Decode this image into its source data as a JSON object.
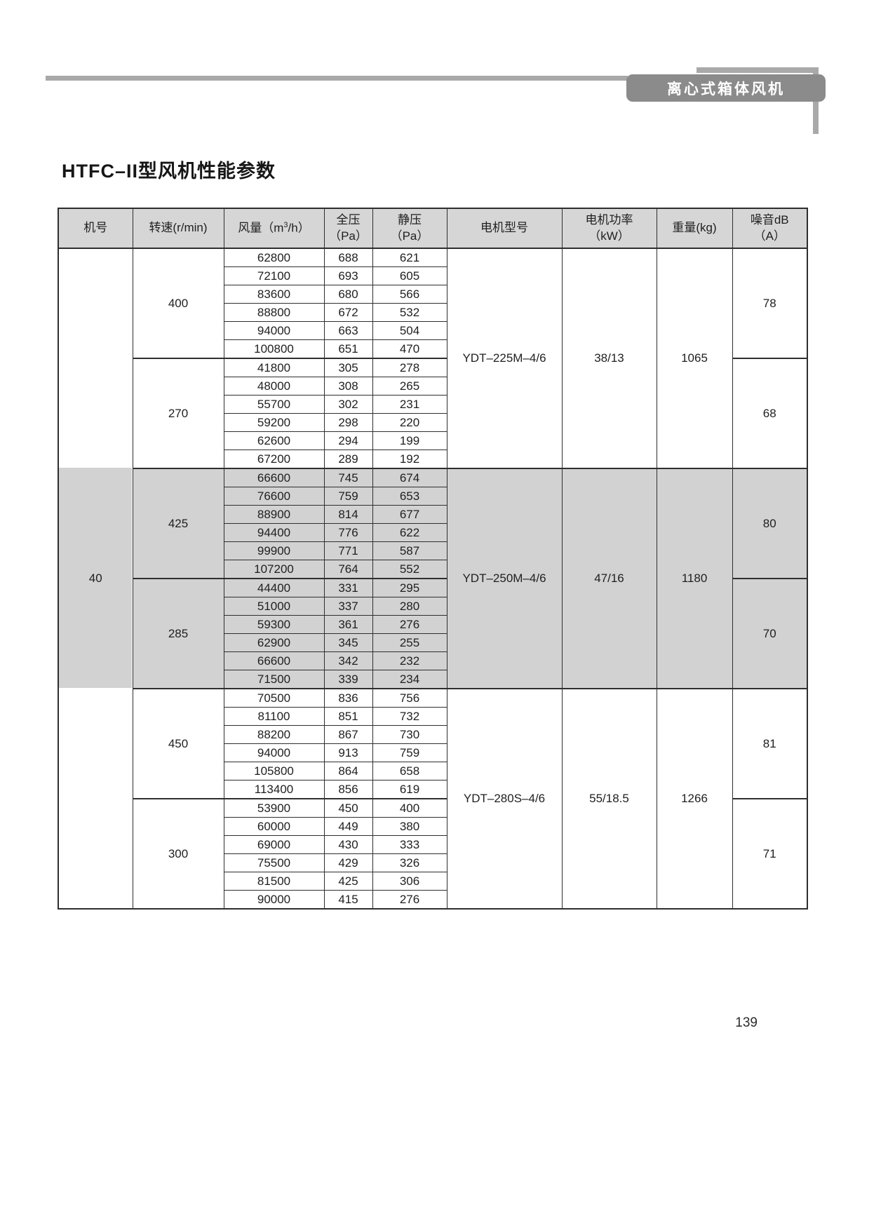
{
  "header": {
    "badge": "离心式箱体风机"
  },
  "title": "HTFC–II型风机性能参数",
  "page_number": "139",
  "table": {
    "columns": {
      "machine": "机号",
      "speed": "转速(r/min)",
      "airflow_pre": "风量（m",
      "airflow_sup": "3",
      "airflow_post": "/h）",
      "total_1": "全压",
      "total_2": "（Pa）",
      "static_1": "静压",
      "static_2": "（Pa）",
      "motor": "电机型号",
      "power_1": "电机功率",
      "power_2": "（kW）",
      "weight": "重量(kg)",
      "noise_1": "噪音dB",
      "noise_2": "（A）"
    },
    "machine_no": "40",
    "sections": [
      {
        "motor_model": "YDT–225M–4/6",
        "motor_power": "38/13",
        "weight": "1065",
        "shaded": false,
        "groups": [
          {
            "speed": "400",
            "noise": "78",
            "rows": [
              [
                "62800",
                "688",
                "621"
              ],
              [
                "72100",
                "693",
                "605"
              ],
              [
                "83600",
                "680",
                "566"
              ],
              [
                "88800",
                "672",
                "532"
              ],
              [
                "94000",
                "663",
                "504"
              ],
              [
                "100800",
                "651",
                "470"
              ]
            ]
          },
          {
            "speed": "270",
            "noise": "68",
            "rows": [
              [
                "41800",
                "305",
                "278"
              ],
              [
                "48000",
                "308",
                "265"
              ],
              [
                "55700",
                "302",
                "231"
              ],
              [
                "59200",
                "298",
                "220"
              ],
              [
                "62600",
                "294",
                "199"
              ],
              [
                "67200",
                "289",
                "192"
              ]
            ]
          }
        ]
      },
      {
        "motor_model": "YDT–250M–4/6",
        "motor_power": "47/16",
        "weight": "1180",
        "shaded": true,
        "groups": [
          {
            "speed": "425",
            "noise": "80",
            "rows": [
              [
                "66600",
                "745",
                "674"
              ],
              [
                "76600",
                "759",
                "653"
              ],
              [
                "88900",
                "814",
                "677"
              ],
              [
                "94400",
                "776",
                "622"
              ],
              [
                "99900",
                "771",
                "587"
              ],
              [
                "107200",
                "764",
                "552"
              ]
            ]
          },
          {
            "speed": "285",
            "noise": "70",
            "rows": [
              [
                "44400",
                "331",
                "295"
              ],
              [
                "51000",
                "337",
                "280"
              ],
              [
                "59300",
                "361",
                "276"
              ],
              [
                "62900",
                "345",
                "255"
              ],
              [
                "66600",
                "342",
                "232"
              ],
              [
                "71500",
                "339",
                "234"
              ]
            ]
          }
        ]
      },
      {
        "motor_model": "YDT–280S–4/6",
        "motor_power": "55/18.5",
        "weight": "1266",
        "shaded": false,
        "groups": [
          {
            "speed": "450",
            "noise": "81",
            "rows": [
              [
                "70500",
                "836",
                "756"
              ],
              [
                "81100",
                "851",
                "732"
              ],
              [
                "88200",
                "867",
                "730"
              ],
              [
                "94000",
                "913",
                "759"
              ],
              [
                "105800",
                "864",
                "658"
              ],
              [
                "113400",
                "856",
                "619"
              ]
            ]
          },
          {
            "speed": "300",
            "noise": "71",
            "rows": [
              [
                "53900",
                "450",
                "400"
              ],
              [
                "60000",
                "449",
                "380"
              ],
              [
                "69000",
                "430",
                "333"
              ],
              [
                "75500",
                "429",
                "326"
              ],
              [
                "81500",
                "425",
                "306"
              ],
              [
                "90000",
                "415",
                "276"
              ]
            ]
          }
        ]
      }
    ]
  }
}
